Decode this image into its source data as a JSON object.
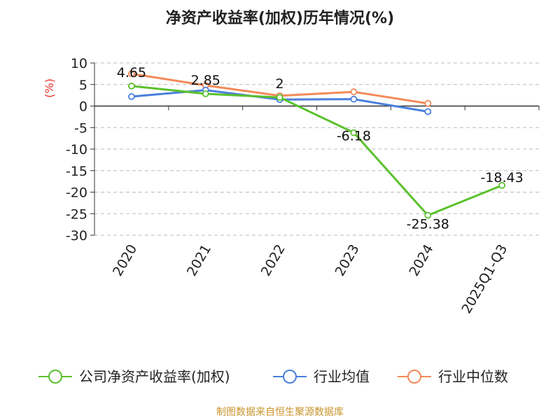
{
  "chart_data": {
    "type": "line",
    "title": "净资产收益率(加权)历年情况(%)",
    "ylabel": "(%)",
    "categories": [
      "2020",
      "2021",
      "2022",
      "2023",
      "2024",
      "2025Q1-Q3"
    ],
    "ylim": [
      -30,
      10
    ],
    "yticks": [
      "10",
      "5",
      "0",
      "-5",
      "-10",
      "-15",
      "-20",
      "-25",
      "-30"
    ],
    "grid": true,
    "legend_position": "bottom",
    "series": [
      {
        "name": "公司净资产收益率(加权)",
        "color": "#5ac12d",
        "values": [
          4.65,
          2.85,
          2,
          -6.18,
          -25.38,
          -18.43
        ],
        "labels": [
          "4.65",
          "2.85",
          "2",
          "-6.18",
          "-25.38",
          "-18.43"
        ]
      },
      {
        "name": "行业均值",
        "color": "#4a7fdc",
        "values": [
          2.2,
          3.7,
          1.5,
          1.6,
          -1.3,
          null
        ]
      },
      {
        "name": "行业中位数",
        "color": "#f28a58",
        "values": [
          7.5,
          4.8,
          2.4,
          3.3,
          0.6,
          null
        ]
      }
    ]
  },
  "source": "制图数据来自恒生聚源数据库"
}
